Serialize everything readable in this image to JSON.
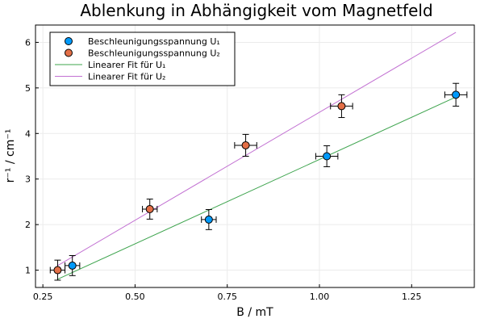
{
  "chart_data": {
    "type": "scatter",
    "title": "Ablenkung in Abhängigkeit vom Magnetfeld",
    "xlabel": "B / mT",
    "ylabel": "r⁻¹ / cm⁻¹",
    "xlim": [
      0.23,
      1.42
    ],
    "ylim": [
      0.62,
      6.38
    ],
    "xticks": [
      0.25,
      0.5,
      0.75,
      1.0,
      1.25
    ],
    "xtick_labels": [
      "0.25",
      "0.50",
      "0.75",
      "1.00",
      "1.25"
    ],
    "yticks": [
      1,
      2,
      3,
      4,
      5,
      6
    ],
    "ytick_labels": [
      "1",
      "2",
      "3",
      "4",
      "5",
      "6"
    ],
    "grid": true,
    "legend_position": "top-left",
    "series": [
      {
        "name": "Beschleunigungsspannung U₁",
        "kind": "scatter",
        "color": "#009AFA",
        "points": [
          {
            "x": 0.33,
            "y": 1.1,
            "xerr": 0.02,
            "yerr": 0.22
          },
          {
            "x": 0.7,
            "y": 2.11,
            "xerr": 0.02,
            "yerr": 0.22
          },
          {
            "x": 1.02,
            "y": 3.5,
            "xerr": 0.03,
            "yerr": 0.23
          },
          {
            "x": 1.37,
            "y": 4.85,
            "xerr": 0.03,
            "yerr": 0.25
          }
        ]
      },
      {
        "name": "Beschleunigungsspannung U₂",
        "kind": "scatter",
        "color": "#E36F47",
        "points": [
          {
            "x": 0.29,
            "y": 1.0,
            "xerr": 0.02,
            "yerr": 0.22
          },
          {
            "x": 0.54,
            "y": 2.34,
            "xerr": 0.02,
            "yerr": 0.22
          },
          {
            "x": 0.8,
            "y": 3.74,
            "xerr": 0.03,
            "yerr": 0.24
          },
          {
            "x": 1.06,
            "y": 4.6,
            "xerr": 0.03,
            "yerr": 0.25
          }
        ]
      },
      {
        "name": "Linearer Fit für U₁",
        "kind": "line",
        "color": "#3EA44E",
        "x": [
          0.29,
          1.37
        ],
        "y": [
          0.8,
          4.8
        ]
      },
      {
        "name": "Linearer Fit für U₂",
        "kind": "line",
        "color": "#C271D2",
        "x": [
          0.29,
          1.37
        ],
        "y": [
          1.1,
          6.22
        ]
      }
    ]
  }
}
